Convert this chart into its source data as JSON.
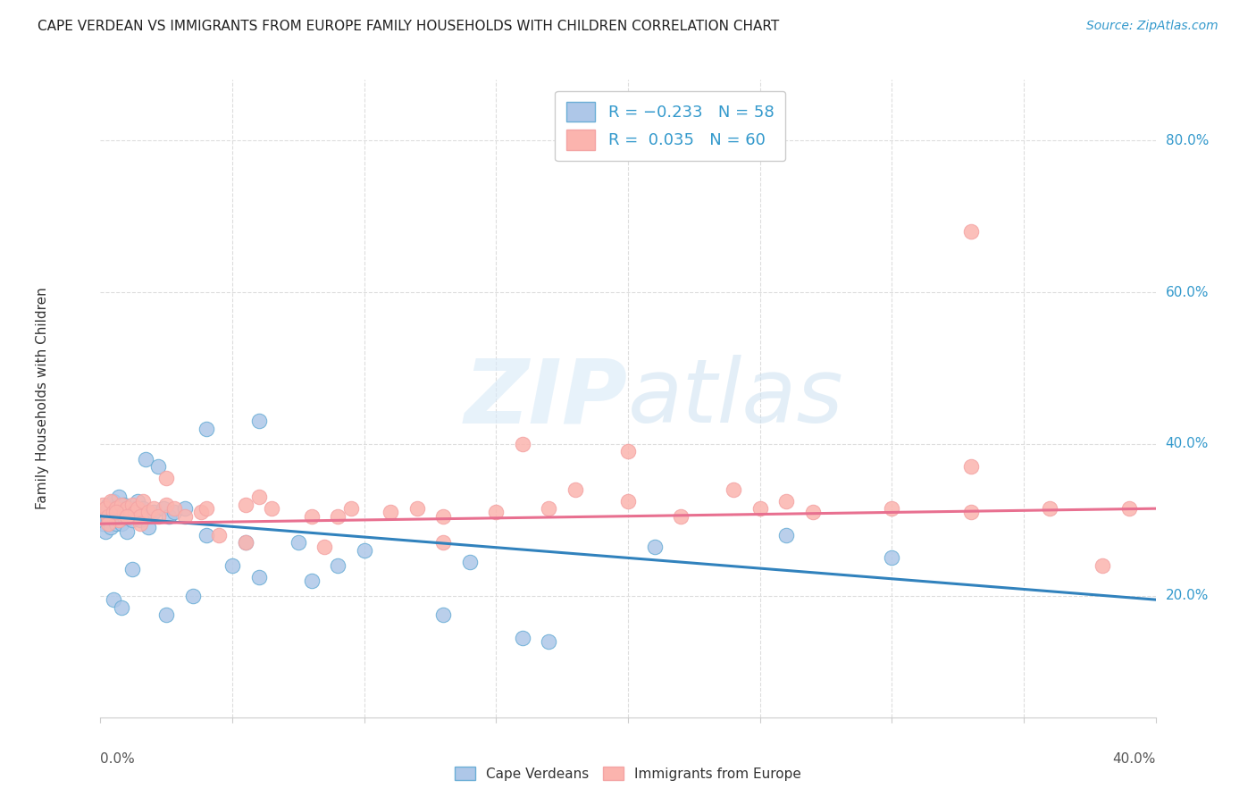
{
  "title": "CAPE VERDEAN VS IMMIGRANTS FROM EUROPE FAMILY HOUSEHOLDS WITH CHILDREN CORRELATION CHART",
  "source": "Source: ZipAtlas.com",
  "ylabel": "Family Households with Children",
  "xlim": [
    0.0,
    0.4
  ],
  "ylim": [
    0.04,
    0.88
  ],
  "ytick_vals": [
    0.2,
    0.4,
    0.6,
    0.8
  ],
  "ytick_labels": [
    "20.0%",
    "40.0%",
    "60.0%",
    "80.0%"
  ],
  "xtick_vals": [
    0.0,
    0.05,
    0.1,
    0.15,
    0.2,
    0.25,
    0.3,
    0.35,
    0.4
  ],
  "blue_face": "#aec7e8",
  "blue_edge": "#6baed6",
  "pink_face": "#fbb4ae",
  "pink_edge": "#f4a4a4",
  "line_blue": "#3182bd",
  "line_pink": "#e87090",
  "grid_color": "#dddddd",
  "text_color": "#3399cc",
  "watermark_color": "#ddeef8",
  "cv_x": [
    0.001,
    0.001,
    0.002,
    0.002,
    0.003,
    0.003,
    0.003,
    0.004,
    0.004,
    0.005,
    0.005,
    0.006,
    0.006,
    0.007,
    0.007,
    0.008,
    0.008,
    0.009,
    0.009,
    0.01,
    0.01,
    0.011,
    0.012,
    0.013,
    0.014,
    0.015,
    0.016,
    0.017,
    0.018,
    0.02,
    0.022,
    0.024,
    0.026,
    0.028,
    0.032,
    0.04,
    0.05,
    0.06,
    0.075,
    0.09,
    0.005,
    0.008,
    0.012,
    0.018,
    0.025,
    0.035,
    0.055,
    0.08,
    0.1,
    0.14,
    0.17,
    0.21,
    0.26,
    0.3,
    0.04,
    0.06,
    0.13,
    0.16
  ],
  "cv_y": [
    0.305,
    0.295,
    0.31,
    0.285,
    0.3,
    0.32,
    0.315,
    0.305,
    0.29,
    0.31,
    0.325,
    0.295,
    0.315,
    0.3,
    0.33,
    0.305,
    0.295,
    0.32,
    0.305,
    0.315,
    0.285,
    0.31,
    0.3,
    0.315,
    0.325,
    0.3,
    0.315,
    0.38,
    0.305,
    0.31,
    0.37,
    0.315,
    0.305,
    0.31,
    0.315,
    0.28,
    0.24,
    0.225,
    0.27,
    0.24,
    0.195,
    0.185,
    0.235,
    0.29,
    0.175,
    0.2,
    0.27,
    0.22,
    0.26,
    0.245,
    0.14,
    0.265,
    0.28,
    0.25,
    0.42,
    0.43,
    0.175,
    0.145
  ],
  "eu_x": [
    0.001,
    0.002,
    0.003,
    0.004,
    0.005,
    0.006,
    0.007,
    0.008,
    0.009,
    0.01,
    0.011,
    0.012,
    0.013,
    0.014,
    0.015,
    0.016,
    0.018,
    0.02,
    0.022,
    0.025,
    0.028,
    0.032,
    0.038,
    0.045,
    0.055,
    0.065,
    0.08,
    0.095,
    0.11,
    0.13,
    0.15,
    0.17,
    0.2,
    0.22,
    0.25,
    0.27,
    0.3,
    0.33,
    0.36,
    0.39,
    0.003,
    0.006,
    0.01,
    0.015,
    0.025,
    0.04,
    0.06,
    0.085,
    0.12,
    0.16,
    0.2,
    0.24,
    0.33,
    0.055,
    0.09,
    0.13,
    0.18,
    0.26,
    0.33,
    0.38
  ],
  "eu_y": [
    0.32,
    0.315,
    0.305,
    0.325,
    0.31,
    0.315,
    0.3,
    0.32,
    0.31,
    0.315,
    0.305,
    0.32,
    0.31,
    0.315,
    0.305,
    0.325,
    0.31,
    0.315,
    0.305,
    0.32,
    0.315,
    0.305,
    0.31,
    0.28,
    0.32,
    0.315,
    0.305,
    0.315,
    0.31,
    0.305,
    0.31,
    0.315,
    0.325,
    0.305,
    0.315,
    0.31,
    0.315,
    0.31,
    0.315,
    0.315,
    0.295,
    0.31,
    0.305,
    0.295,
    0.355,
    0.315,
    0.33,
    0.265,
    0.315,
    0.4,
    0.39,
    0.34,
    0.68,
    0.27,
    0.305,
    0.27,
    0.34,
    0.325,
    0.37,
    0.24
  ],
  "cv_line_x": [
    0.0,
    0.4
  ],
  "cv_line_y": [
    0.305,
    0.195
  ],
  "eu_line_x": [
    0.0,
    0.4
  ],
  "eu_line_y": [
    0.295,
    0.315
  ]
}
